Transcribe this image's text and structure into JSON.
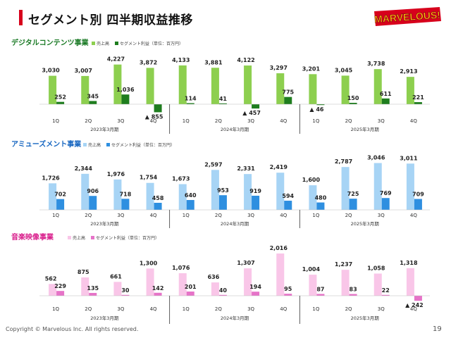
{
  "page": {
    "title": "セグメント別 四半期収益推移",
    "logo_text": "MARVELOUS!",
    "copyright": "Copyright © Marvelous Inc. All rights reserved.",
    "page_number": "19"
  },
  "colors": {
    "title_bar": "#d7001c",
    "digital_title": "#1a7a25",
    "amusement_title": "#1565c0",
    "music_title": "#d81b8a",
    "logo_red": "#d7001c",
    "logo_yellow": "#ffc20e",
    "divider": "#333333"
  },
  "chart_data": [
    {
      "id": "digital",
      "type": "bar",
      "title": "デジタルコンテンツ事業",
      "legend": [
        "売上高",
        "セグメント利益（単位：百万円）"
      ],
      "series_colors": [
        "#8dcf4f",
        "#1e7d1e"
      ],
      "categories": [
        "1Q",
        "2Q",
        "3Q",
        "4Q",
        "1Q",
        "2Q",
        "3Q",
        "4Q",
        "1Q",
        "2Q",
        "3Q",
        "4Q"
      ],
      "year_groups": [
        "2023年3月期",
        "2024年3月期",
        "2025年3月期"
      ],
      "series": [
        {
          "name": "売上高",
          "values": [
            3030,
            3007,
            4227,
            3872,
            4133,
            3881,
            4122,
            3297,
            3201,
            3045,
            3738,
            2913
          ]
        },
        {
          "name": "セグメント利益",
          "values": [
            252,
            345,
            1036,
            -855,
            114,
            41,
            -457,
            775,
            -46,
            150,
            611,
            221
          ]
        }
      ],
      "value_labels": {
        "revenue": [
          "3,030",
          "3,007",
          "4,227",
          "3,872",
          "4,133",
          "3,881",
          "4,122",
          "3,297",
          "3,201",
          "3,045",
          "3,738",
          "2,913"
        ],
        "profit": [
          "252",
          "345",
          "1,036",
          "▲ 855",
          "114",
          "41",
          "▲ 457",
          "775",
          "▲ 46",
          "150",
          "611",
          "221"
        ]
      },
      "ylim": [
        -900,
        4500
      ]
    },
    {
      "id": "amusement",
      "type": "bar",
      "title": "アミューズメント事業",
      "legend": [
        "売上高",
        "セグメント利益（単位：百万円）"
      ],
      "series_colors": [
        "#a7d4f5",
        "#2e8fe0"
      ],
      "categories": [
        "1Q",
        "2Q",
        "3Q",
        "4Q",
        "1Q",
        "2Q",
        "3Q",
        "4Q",
        "1Q",
        "2Q",
        "3Q",
        "4Q"
      ],
      "year_groups": [
        "2023年3月期",
        "2024年3月期",
        "2025年3月期"
      ],
      "series": [
        {
          "name": "売上高",
          "values": [
            1726,
            2344,
            1976,
            1754,
            1673,
            2597,
            2331,
            2419,
            1600,
            2787,
            3046,
            3011
          ]
        },
        {
          "name": "セグメント利益",
          "values": [
            702,
            906,
            718,
            458,
            640,
            953,
            919,
            594,
            480,
            725,
            769,
            709
          ]
        }
      ],
      "value_labels": {
        "revenue": [
          "1,726",
          "2,344",
          "1,976",
          "1,754",
          "1,673",
          "2,597",
          "2,331",
          "2,419",
          "1,600",
          "2,787",
          "3,046",
          "3,011"
        ],
        "profit": [
          "702",
          "906",
          "718",
          "458",
          "640",
          "953",
          "919",
          "594",
          "480",
          "725",
          "769",
          "709"
        ]
      },
      "ylim": [
        0,
        3300
      ]
    },
    {
      "id": "music",
      "type": "bar",
      "title": "音楽映像事業",
      "legend": [
        "売上高",
        "セグメント利益（単位：百万円）"
      ],
      "series_colors": [
        "#f9c6e8",
        "#e673c8"
      ],
      "categories": [
        "1Q",
        "2Q",
        "3Q",
        "4Q",
        "1Q",
        "2Q",
        "3Q",
        "4Q",
        "1Q",
        "2Q",
        "3Q",
        "4Q"
      ],
      "year_groups": [
        "2023年3月期",
        "2024年3月期",
        "2025年3月期"
      ],
      "series": [
        {
          "name": "売上高",
          "values": [
            562,
            875,
            661,
            1300,
            1076,
            636,
            1307,
            2016,
            1004,
            1237,
            1058,
            1318
          ]
        },
        {
          "name": "セグメント利益",
          "values": [
            229,
            135,
            30,
            142,
            201,
            40,
            194,
            95,
            87,
            83,
            22,
            -242
          ]
        }
      ],
      "value_labels": {
        "revenue": [
          "562",
          "875",
          "661",
          "1,300",
          "1,076",
          "636",
          "1,307",
          "2,016",
          "1,004",
          "1,237",
          "1,058",
          "1,318"
        ],
        "profit": [
          "229",
          "135",
          "30",
          "142",
          "201",
          "40",
          "194",
          "95",
          "87",
          "83",
          "22",
          "▲ 242"
        ]
      },
      "ylim": [
        -300,
        2150
      ]
    }
  ]
}
